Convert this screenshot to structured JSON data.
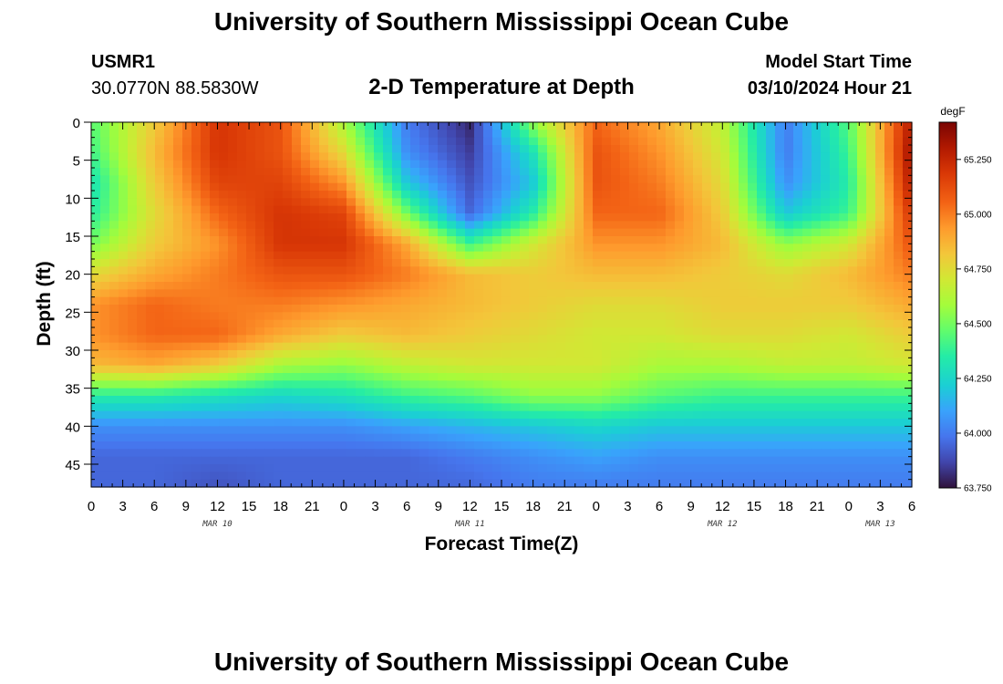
{
  "page": {
    "title": "University of Southern Mississippi Ocean Cube",
    "footer_title": "University of Southern Mississippi Ocean Cube",
    "station_id": "USMR1",
    "station_coords": "30.0770N  88.5830W",
    "chart_subtitle": "2-D Temperature at Depth",
    "model_start_label": "Model Start Time",
    "model_start_value": "03/10/2024 Hour 21"
  },
  "chart_data": {
    "type": "heatmap",
    "title": "2-D Temperature at Depth",
    "xlabel": "Forecast Time(Z)",
    "ylabel": "Depth (ft)",
    "x_tick_labels": [
      "0",
      "3",
      "6",
      "9",
      "12",
      "15",
      "18",
      "21",
      "0",
      "3",
      "6",
      "9",
      "12",
      "15",
      "18",
      "21",
      "0",
      "3",
      "6",
      "9",
      "12",
      "15",
      "18",
      "21",
      "0",
      "3",
      "6"
    ],
    "x_range_hours": [
      0,
      78
    ],
    "month_labels": [
      {
        "label": "MAR 10",
        "hour": 12
      },
      {
        "label": "MAR 11",
        "hour": 36
      },
      {
        "label": "MAR 12",
        "hour": 60
      },
      {
        "label": "MAR 13",
        "hour": 75
      }
    ],
    "y_ticks": [
      0,
      5,
      10,
      15,
      20,
      25,
      30,
      35,
      40,
      45
    ],
    "y_range_ft": [
      0,
      48
    ],
    "colorbar": {
      "unit": "degF",
      "range": [
        63.75,
        65.42
      ],
      "tick_values": [
        63.75,
        64.0,
        64.25,
        64.5,
        64.75,
        65.0,
        65.25
      ],
      "tick_labels": [
        "63.750",
        "64.000",
        "64.250",
        "64.500",
        "64.750",
        "65.000",
        "65.250"
      ]
    },
    "grid": {
      "times_hours": [
        0,
        6,
        12,
        18,
        24,
        30,
        36,
        42,
        48,
        54,
        60,
        66,
        72,
        78
      ],
      "depths_ft": [
        0,
        4,
        8,
        12,
        16,
        20,
        24,
        28,
        32,
        36,
        40,
        44,
        48
      ],
      "values_degF": [
        [
          64.45,
          64.8,
          65.2,
          65.1,
          64.6,
          64.0,
          63.8,
          64.55,
          65.05,
          64.9,
          64.65,
          64.0,
          64.45,
          65.3
        ],
        [
          64.4,
          64.85,
          65.2,
          65.1,
          64.75,
          64.05,
          63.85,
          64.3,
          65.1,
          64.95,
          64.7,
          64.0,
          64.4,
          65.35
        ],
        [
          64.3,
          64.8,
          65.15,
          65.15,
          64.95,
          64.2,
          63.9,
          64.2,
          65.1,
          65.0,
          64.75,
          64.05,
          64.35,
          65.3
        ],
        [
          64.35,
          64.75,
          65.05,
          65.2,
          65.15,
          64.5,
          63.95,
          64.35,
          65.05,
          65.05,
          64.8,
          64.2,
          64.4,
          65.2
        ],
        [
          64.5,
          64.8,
          64.95,
          65.2,
          65.2,
          64.9,
          64.4,
          64.7,
          64.95,
          64.95,
          64.85,
          64.55,
          64.7,
          65.1
        ],
        [
          64.75,
          64.9,
          65.0,
          65.1,
          65.1,
          65.0,
          64.85,
          64.8,
          64.85,
          64.85,
          64.8,
          64.75,
          64.85,
          65.0
        ],
        [
          64.95,
          65.05,
          65.0,
          65.0,
          64.95,
          64.9,
          64.85,
          64.8,
          64.75,
          64.75,
          64.8,
          64.8,
          64.8,
          64.9
        ],
        [
          64.95,
          65.05,
          65.05,
          64.9,
          64.8,
          64.85,
          64.8,
          64.75,
          64.7,
          64.7,
          64.75,
          64.75,
          64.7,
          64.8
        ],
        [
          64.85,
          64.9,
          64.8,
          64.6,
          64.55,
          64.65,
          64.7,
          64.7,
          64.7,
          64.6,
          64.6,
          64.65,
          64.65,
          64.7
        ],
        [
          64.35,
          64.35,
          64.3,
          64.25,
          64.3,
          64.4,
          64.45,
          64.55,
          64.55,
          64.45,
          64.4,
          64.4,
          64.4,
          64.4
        ],
        [
          64.05,
          64.05,
          64.05,
          64.05,
          64.05,
          64.1,
          64.15,
          64.2,
          64.25,
          64.2,
          64.2,
          64.2,
          64.2,
          64.2
        ],
        [
          63.95,
          63.95,
          63.95,
          63.95,
          63.95,
          63.95,
          64.0,
          64.05,
          64.1,
          64.05,
          64.05,
          64.05,
          64.05,
          64.05
        ],
        [
          63.95,
          63.95,
          63.9,
          63.95,
          63.95,
          63.95,
          63.95,
          64.0,
          64.0,
          64.0,
          64.0,
          64.0,
          64.0,
          64.0
        ]
      ]
    }
  }
}
